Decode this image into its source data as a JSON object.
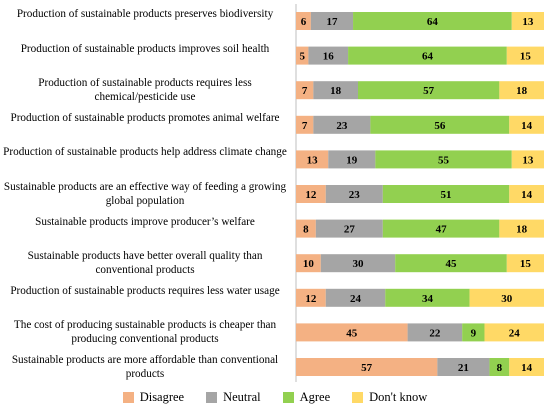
{
  "chart_data": {
    "type": "bar",
    "orientation": "horizontal",
    "stacked": true,
    "percent": true,
    "categories": [
      "Production of sustainable products preserves biodiversity",
      "Production of sustainable products improves soil health",
      "Production of sustainable products requires less chemical/pesticide use",
      "Production of sustainable products promotes animal welfare",
      "Production of sustainable products help address climate change",
      "Sustainable products are an effective way of feeding a growing global population",
      "Sustainable products improve producer’s welfare",
      "Sustainable products have better overall quality than conventional products",
      "Production of sustainable products requires less water usage",
      "The cost of producing sustainable products is cheaper than producing conventional products",
      "Sustainable products are more affordable than conventional products"
    ],
    "series": [
      {
        "name": "Disagree",
        "color": "#F4B183",
        "values": [
          6,
          5,
          7,
          7,
          13,
          12,
          8,
          10,
          12,
          45,
          57
        ]
      },
      {
        "name": "Neutral",
        "color": "#A5A5A5",
        "values": [
          17,
          16,
          18,
          23,
          19,
          23,
          27,
          30,
          24,
          22,
          21
        ]
      },
      {
        "name": "Agree",
        "color": "#92D050",
        "values": [
          64,
          64,
          57,
          56,
          55,
          51,
          47,
          45,
          34,
          9,
          8
        ]
      },
      {
        "name": "Don't know",
        "color": "#FFD966",
        "values": [
          13,
          15,
          18,
          14,
          13,
          14,
          18,
          15,
          30,
          24,
          14
        ]
      }
    ],
    "xlim": [
      0,
      100
    ],
    "legend_position": "bottom",
    "grid": false
  }
}
